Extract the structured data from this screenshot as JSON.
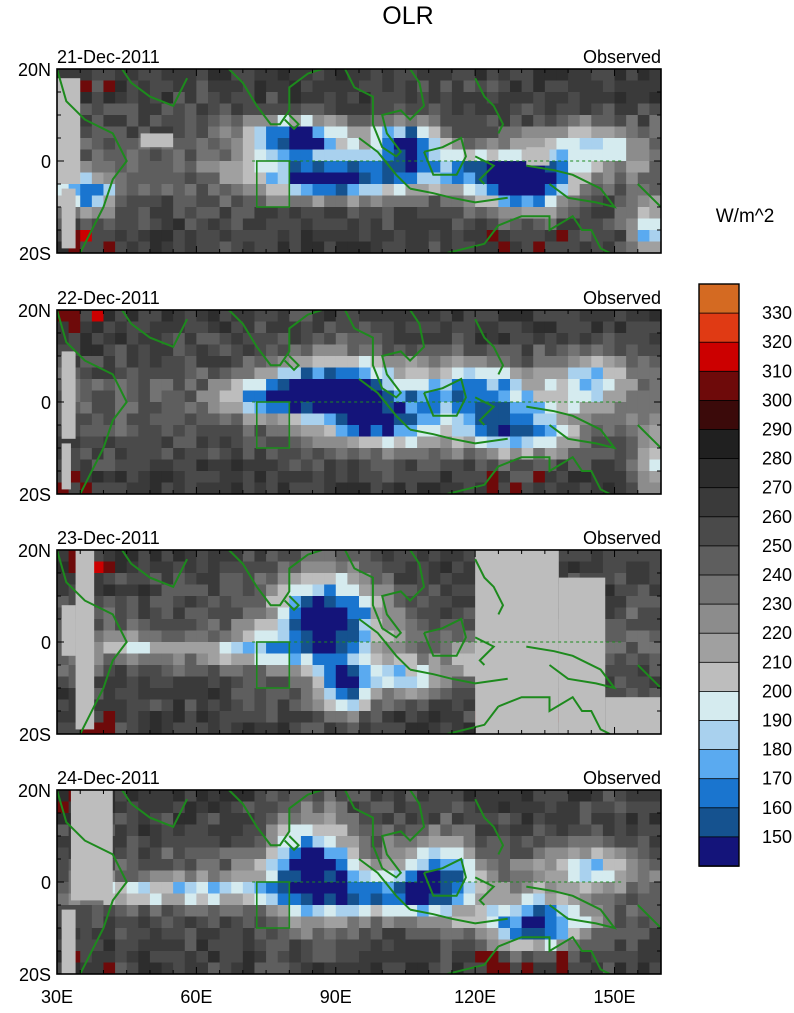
{
  "title": "OLR",
  "colorbar": {
    "units": "W/m^2",
    "levels": [
      150,
      160,
      170,
      180,
      190,
      200,
      210,
      220,
      230,
      240,
      250,
      260,
      270,
      280,
      290,
      300,
      310,
      320,
      330
    ],
    "colors": [
      "#14147a",
      "#15528f",
      "#1a75cf",
      "#5aaaf0",
      "#a9d1ee",
      "#d5ebef",
      "#bdbdbd",
      "#a0a0a0",
      "#8c8c8c",
      "#737373",
      "#5e5e5e",
      "#4a4a4a",
      "#3a3a3a",
      "#2d2d2d",
      "#202020",
      "#3b0a0a",
      "#6e0a0a",
      "#cc0000",
      "#e03a14",
      "#d46a22"
    ]
  },
  "chart_data": {
    "type": "heatmap",
    "title": "OLR",
    "units": "W/m^2",
    "x_ticks": [
      "30E",
      "60E",
      "90E",
      "120E",
      "150E"
    ],
    "x_tick_values": [
      30,
      60,
      90,
      120,
      150
    ],
    "y_ticks": [
      "20N",
      "0",
      "20S"
    ],
    "y_tick_values": [
      20,
      0,
      -20
    ],
    "xlim": [
      30,
      160
    ],
    "ylim": [
      -20,
      20
    ],
    "panels": [
      {
        "date": "21-Dec-2011",
        "label": "Observed"
      },
      {
        "date": "22-Dec-2011",
        "label": "Observed"
      },
      {
        "date": "23-Dec-2011",
        "label": "Observed"
      },
      {
        "date": "24-Dec-2011",
        "label": "Observed"
      }
    ]
  }
}
